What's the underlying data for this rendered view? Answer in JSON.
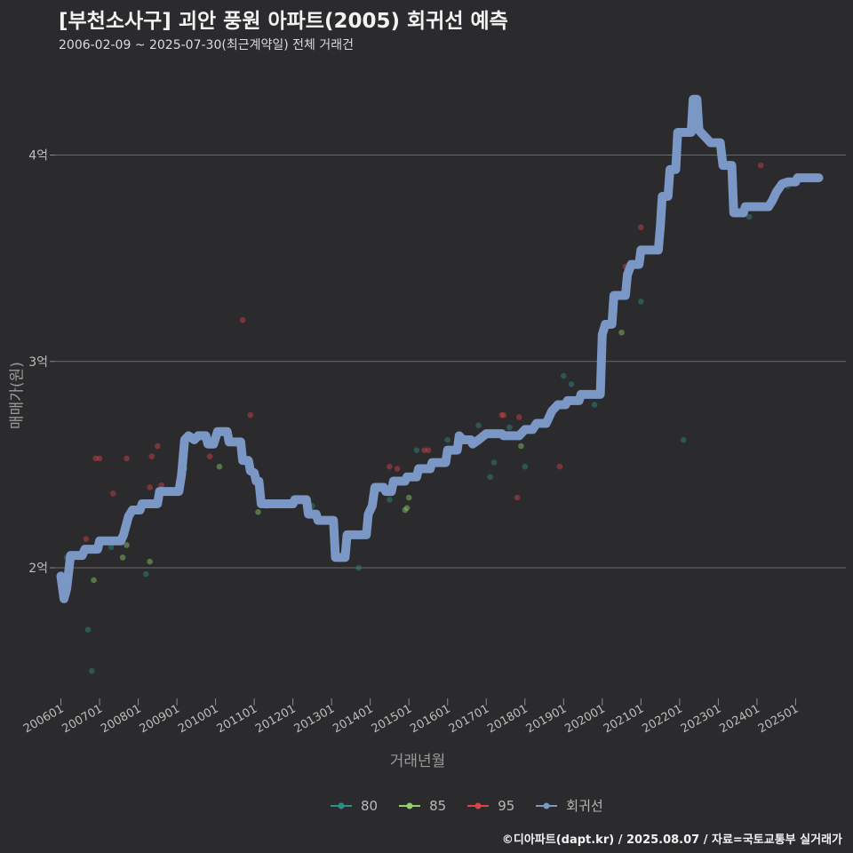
{
  "chart_data": {
    "type": "scatter",
    "title": "[부천소사구] 괴안 풍원 아파트(2005) 회귀선 예측",
    "subtitle": "2006-02-09 ~ 2025-07-30(최근계약일) 전체 거래건",
    "xlabel": "거래년월",
    "ylabel": "매매가(원)",
    "xlim": [
      2005.85,
      2026.3
    ],
    "ylim": [
      1.35,
      4.45
    ],
    "y_ticks": [
      {
        "value": 2,
        "label": "2억"
      },
      {
        "value": 3,
        "label": "3억"
      },
      {
        "value": 4,
        "label": "4억"
      }
    ],
    "x_ticks": [
      {
        "value": 2006,
        "label": "200601"
      },
      {
        "value": 2007,
        "label": "200701"
      },
      {
        "value": 2008,
        "label": "200801"
      },
      {
        "value": 2009,
        "label": "200901"
      },
      {
        "value": 2010,
        "label": "201001"
      },
      {
        "value": 2011,
        "label": "201101"
      },
      {
        "value": 2012,
        "label": "201201"
      },
      {
        "value": 2013,
        "label": "201301"
      },
      {
        "value": 2014,
        "label": "201401"
      },
      {
        "value": 2015,
        "label": "201501"
      },
      {
        "value": 2016,
        "label": "201601"
      },
      {
        "value": 2017,
        "label": "201701"
      },
      {
        "value": 2018,
        "label": "201801"
      },
      {
        "value": 2019,
        "label": "201901"
      },
      {
        "value": 2020,
        "label": "202001"
      },
      {
        "value": 2021,
        "label": "202101"
      },
      {
        "value": 2022,
        "label": "202201"
      },
      {
        "value": 2023,
        "label": "202301"
      },
      {
        "value": 2024,
        "label": "202401"
      },
      {
        "value": 2025,
        "label": "202501"
      }
    ],
    "legend": [
      {
        "name": "80",
        "color": "#2f8f86"
      },
      {
        "name": "85",
        "color": "#8fd16a"
      },
      {
        "name": "95",
        "color": "#d9434a"
      },
      {
        "name": "회귀선",
        "color": "#7b97c6"
      }
    ],
    "series": [
      {
        "name": "80",
        "color": "#2f8f86",
        "points": [
          [
            2006.15,
            2.05
          ],
          [
            2006.7,
            1.7
          ],
          [
            2006.8,
            1.5
          ],
          [
            2007.3,
            2.1
          ],
          [
            2008.2,
            1.97
          ],
          [
            2009.2,
            2.48
          ],
          [
            2011.3,
            2.3
          ],
          [
            2012.5,
            2.3
          ],
          [
            2013.7,
            2.0
          ],
          [
            2014.5,
            2.33
          ],
          [
            2015.2,
            2.57
          ],
          [
            2016.0,
            2.62
          ],
          [
            2016.8,
            2.69
          ],
          [
            2017.1,
            2.44
          ],
          [
            2017.2,
            2.51
          ],
          [
            2017.6,
            2.68
          ],
          [
            2018.0,
            2.49
          ],
          [
            2019.0,
            2.93
          ],
          [
            2019.2,
            2.89
          ],
          [
            2019.8,
            2.79
          ],
          [
            2021.0,
            3.29
          ],
          [
            2022.1,
            2.62
          ],
          [
            2023.8,
            3.7
          ],
          [
            2024.8,
            3.85
          ]
        ]
      },
      {
        "name": "85",
        "color": "#8fd16a",
        "points": [
          [
            2006.85,
            1.94
          ],
          [
            2007.6,
            2.05
          ],
          [
            2007.7,
            2.11
          ],
          [
            2008.3,
            2.03
          ],
          [
            2008.6,
            2.38
          ],
          [
            2010.1,
            2.49
          ],
          [
            2011.1,
            2.27
          ],
          [
            2014.9,
            2.28
          ],
          [
            2014.95,
            2.29
          ],
          [
            2015.0,
            2.34
          ],
          [
            2016.6,
            2.6
          ],
          [
            2017.9,
            2.59
          ],
          [
            2019.9,
            2.84
          ],
          [
            2020.5,
            3.14
          ]
        ]
      },
      {
        "name": "95",
        "color": "#d9434a",
        "points": [
          [
            2006.65,
            2.14
          ],
          [
            2006.9,
            2.53
          ],
          [
            2007.0,
            2.53
          ],
          [
            2007.35,
            2.36
          ],
          [
            2007.7,
            2.53
          ],
          [
            2008.3,
            2.39
          ],
          [
            2008.35,
            2.54
          ],
          [
            2008.5,
            2.59
          ],
          [
            2008.6,
            2.4
          ],
          [
            2009.85,
            2.54
          ],
          [
            2010.7,
            3.2
          ],
          [
            2010.9,
            2.74
          ],
          [
            2014.5,
            2.49
          ],
          [
            2014.7,
            2.48
          ],
          [
            2015.4,
            2.57
          ],
          [
            2015.5,
            2.57
          ],
          [
            2016.1,
            2.57
          ],
          [
            2017.8,
            2.34
          ],
          [
            2017.4,
            2.74
          ],
          [
            2017.45,
            2.74
          ],
          [
            2017.85,
            2.73
          ],
          [
            2018.9,
            2.49
          ],
          [
            2020.6,
            3.46
          ],
          [
            2021.0,
            3.65
          ],
          [
            2024.1,
            3.95
          ]
        ]
      },
      {
        "name": "회귀선",
        "color": "#7b97c6",
        "type": "step-line",
        "points": [
          [
            2006.0,
            1.96
          ],
          [
            2006.08,
            1.85
          ],
          [
            2006.15,
            1.9
          ],
          [
            2006.25,
            2.06
          ],
          [
            2006.55,
            2.06
          ],
          [
            2006.62,
            2.09
          ],
          [
            2006.95,
            2.09
          ],
          [
            2007.0,
            2.13
          ],
          [
            2007.55,
            2.13
          ],
          [
            2007.62,
            2.16
          ],
          [
            2007.75,
            2.25
          ],
          [
            2007.85,
            2.28
          ],
          [
            2008.05,
            2.28
          ],
          [
            2008.1,
            2.31
          ],
          [
            2008.5,
            2.31
          ],
          [
            2008.55,
            2.37
          ],
          [
            2009.05,
            2.37
          ],
          [
            2009.12,
            2.45
          ],
          [
            2009.2,
            2.62
          ],
          [
            2009.3,
            2.64
          ],
          [
            2009.45,
            2.62
          ],
          [
            2009.55,
            2.64
          ],
          [
            2009.75,
            2.64
          ],
          [
            2009.8,
            2.6
          ],
          [
            2009.95,
            2.6
          ],
          [
            2010.05,
            2.66
          ],
          [
            2010.3,
            2.66
          ],
          [
            2010.35,
            2.61
          ],
          [
            2010.65,
            2.61
          ],
          [
            2010.7,
            2.52
          ],
          [
            2010.85,
            2.52
          ],
          [
            2010.9,
            2.47
          ],
          [
            2011.0,
            2.46
          ],
          [
            2011.05,
            2.42
          ],
          [
            2011.12,
            2.42
          ],
          [
            2011.18,
            2.31
          ],
          [
            2012.0,
            2.31
          ],
          [
            2012.05,
            2.33
          ],
          [
            2012.35,
            2.33
          ],
          [
            2012.4,
            2.26
          ],
          [
            2012.6,
            2.26
          ],
          [
            2012.65,
            2.23
          ],
          [
            2013.05,
            2.23
          ],
          [
            2013.1,
            2.05
          ],
          [
            2013.35,
            2.05
          ],
          [
            2013.4,
            2.16
          ],
          [
            2013.9,
            2.16
          ],
          [
            2013.95,
            2.26
          ],
          [
            2014.05,
            2.3
          ],
          [
            2014.12,
            2.39
          ],
          [
            2014.35,
            2.39
          ],
          [
            2014.4,
            2.37
          ],
          [
            2014.55,
            2.37
          ],
          [
            2014.6,
            2.42
          ],
          [
            2014.9,
            2.42
          ],
          [
            2014.95,
            2.44
          ],
          [
            2015.2,
            2.44
          ],
          [
            2015.25,
            2.48
          ],
          [
            2015.55,
            2.48
          ],
          [
            2015.6,
            2.51
          ],
          [
            2015.95,
            2.51
          ],
          [
            2016.0,
            2.57
          ],
          [
            2016.25,
            2.57
          ],
          [
            2016.3,
            2.64
          ],
          [
            2016.4,
            2.62
          ],
          [
            2016.6,
            2.62
          ],
          [
            2016.65,
            2.6
          ],
          [
            2016.8,
            2.62
          ],
          [
            2017.0,
            2.65
          ],
          [
            2017.4,
            2.65
          ],
          [
            2017.45,
            2.64
          ],
          [
            2017.85,
            2.64
          ],
          [
            2018.0,
            2.67
          ],
          [
            2018.2,
            2.67
          ],
          [
            2018.3,
            2.7
          ],
          [
            2018.55,
            2.7
          ],
          [
            2018.7,
            2.76
          ],
          [
            2018.85,
            2.79
          ],
          [
            2019.05,
            2.79
          ],
          [
            2019.1,
            2.81
          ],
          [
            2019.4,
            2.81
          ],
          [
            2019.45,
            2.84
          ],
          [
            2019.95,
            2.84
          ],
          [
            2020.0,
            3.13
          ],
          [
            2020.08,
            3.18
          ],
          [
            2020.25,
            3.18
          ],
          [
            2020.3,
            3.32
          ],
          [
            2020.6,
            3.32
          ],
          [
            2020.65,
            3.42
          ],
          [
            2020.75,
            3.47
          ],
          [
            2020.95,
            3.47
          ],
          [
            2021.0,
            3.54
          ],
          [
            2021.45,
            3.54
          ],
          [
            2021.5,
            3.65
          ],
          [
            2021.55,
            3.8
          ],
          [
            2021.7,
            3.8
          ],
          [
            2021.75,
            3.93
          ],
          [
            2021.9,
            3.93
          ],
          [
            2021.95,
            4.11
          ],
          [
            2022.05,
            4.11
          ],
          [
            2022.15,
            4.11
          ],
          [
            2022.3,
            4.11
          ],
          [
            2022.35,
            4.27
          ],
          [
            2022.45,
            4.27
          ],
          [
            2022.5,
            4.12
          ],
          [
            2022.6,
            4.1
          ],
          [
            2022.8,
            4.06
          ],
          [
            2023.05,
            4.06
          ],
          [
            2023.12,
            3.95
          ],
          [
            2023.35,
            3.95
          ],
          [
            2023.4,
            3.72
          ],
          [
            2023.65,
            3.72
          ],
          [
            2023.7,
            3.75
          ],
          [
            2024.3,
            3.75
          ],
          [
            2024.4,
            3.78
          ],
          [
            2024.5,
            3.82
          ],
          [
            2024.65,
            3.86
          ],
          [
            2024.8,
            3.87
          ],
          [
            2025.0,
            3.87
          ],
          [
            2025.05,
            3.89
          ],
          [
            2025.6,
            3.89
          ]
        ]
      }
    ]
  },
  "caption": "©디아파트(dapt.kr) / 2025.08.07 / 자료=국토교통부 실거래가"
}
